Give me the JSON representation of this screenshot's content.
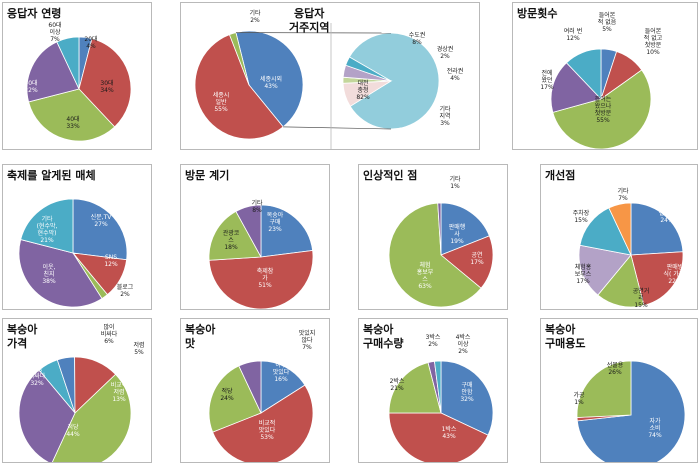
{
  "colors": {
    "blue": "#4f81bd",
    "red": "#c0504d",
    "green": "#9bbb59",
    "purple": "#8064a2",
    "teal": "#4bacc6",
    "orange": "#f79646",
    "lightpurple": "#b3a2c7",
    "pink": "#f2dcdb",
    "lightblue": "#92cddc",
    "olive": "#c3d69b",
    "navy": "#1f497d"
  },
  "chart_data": [
    {
      "id": "c1",
      "type": "pie",
      "title": "응답자 연령",
      "slices": [
        {
          "label": "20대",
          "value": 4,
          "pct": "4%",
          "color": "blue"
        },
        {
          "label": "30대",
          "value": 34,
          "pct": "34%",
          "color": "red"
        },
        {
          "label": "40대",
          "value": 33,
          "pct": "33%",
          "color": "green"
        },
        {
          "label": "50대",
          "value": 22,
          "pct": "22%",
          "color": "purple"
        },
        {
          "label": "60대\n이상",
          "value": 7,
          "pct": "7%",
          "color": "teal"
        }
      ]
    },
    {
      "id": "c2",
      "type": "pie",
      "title": "응답자\n거주지역",
      "slices": [
        {
          "label": "세종시외",
          "value": 43,
          "pct": "43%",
          "color": "blue"
        },
        {
          "label": "세종시\n일반",
          "value": 55,
          "pct": "55%",
          "color": "red"
        },
        {
          "label": "기타",
          "value": 2,
          "pct": "2%",
          "color": "green"
        }
      ],
      "sub_slices": [
        {
          "label": "대전\n충청",
          "value": 82,
          "pct": "82%",
          "color": "lightblue"
        },
        {
          "label": "수도권",
          "value": 8,
          "pct": "8%",
          "color": "pink"
        },
        {
          "label": "경상권",
          "value": 2,
          "pct": "2%",
          "color": "olive"
        },
        {
          "label": "전라권",
          "value": 4,
          "pct": "4%",
          "color": "lightpurple"
        },
        {
          "label": "기타\n지역",
          "value": 3,
          "pct": "3%",
          "color": "teal"
        }
      ]
    },
    {
      "id": "c3",
      "type": "pie",
      "title": "방문횟수",
      "slices": [
        {
          "label": "들어본\n적 없음",
          "value": 5,
          "pct": "5%",
          "color": "blue"
        },
        {
          "label": "들어본\n적 없고\n첫방문",
          "value": 10,
          "pct": "10%",
          "color": "red"
        },
        {
          "label": "들어는\n왔으나\n첫방문",
          "value": 55,
          "pct": "55%",
          "color": "green"
        },
        {
          "label": "전에\n왔던",
          "value": 17,
          "pct": "17%",
          "color": "purple"
        },
        {
          "label": "여러 번",
          "value": 12,
          "pct": "12%",
          "color": "teal"
        }
      ]
    },
    {
      "id": "c4",
      "type": "pie",
      "title": "축제를 알게된 매체",
      "slices": [
        {
          "label": "신문,TV",
          "value": 27,
          "pct": "27%",
          "color": "blue"
        },
        {
          "label": "SNS",
          "value": 12,
          "pct": "12%",
          "color": "red"
        },
        {
          "label": "블로그",
          "value": 2,
          "pct": "2%",
          "color": "green"
        },
        {
          "label": "이웃,\n친지",
          "value": 38,
          "pct": "38%",
          "color": "purple"
        },
        {
          "label": "기타\n(현수막,\n현수막)",
          "value": 21,
          "pct": "21%",
          "color": "teal"
        }
      ]
    },
    {
      "id": "c5",
      "type": "pie",
      "title": "방문 계기",
      "slices": [
        {
          "label": "복숭아\n구매",
          "value": 23,
          "pct": "23%",
          "color": "blue"
        },
        {
          "label": "축제참\n가",
          "value": 51,
          "pct": "51%",
          "color": "red"
        },
        {
          "label": "관광코\n스",
          "value": 18,
          "pct": "18%",
          "color": "green"
        },
        {
          "label": "기타",
          "value": 8,
          "pct": "8%",
          "color": "purple"
        }
      ]
    },
    {
      "id": "c6",
      "type": "pie",
      "title": "인상적인 점",
      "slices": [
        {
          "label": "판매행\n사",
          "value": 19,
          "pct": "19%",
          "color": "blue"
        },
        {
          "label": "공연",
          "value": 17,
          "pct": "17%",
          "color": "red"
        },
        {
          "label": "체험\n홍보부\n스",
          "value": 63,
          "pct": "63%",
          "color": "green"
        },
        {
          "label": "기타",
          "value": 1,
          "pct": "1%",
          "color": "purple"
        }
      ]
    },
    {
      "id": "c7",
      "type": "pie",
      "title": "개선점",
      "slices": [
        {
          "label": "접근성",
          "value": 24,
          "pct": "24%",
          "color": "blue"
        },
        {
          "label": "판매방\n식( 가격)",
          "value": 22,
          "pct": "22%",
          "color": "red"
        },
        {
          "label": "공연거\n리",
          "value": 15,
          "pct": "15%",
          "color": "green"
        },
        {
          "label": "체험홍\n보부스",
          "value": 17,
          "pct": "17%",
          "color": "lightpurple"
        },
        {
          "label": "주차장",
          "value": 15,
          "pct": "15%",
          "color": "teal"
        },
        {
          "label": "기타",
          "value": 7,
          "pct": "7%",
          "color": "orange"
        }
      ]
    },
    {
      "id": "c8",
      "type": "pie",
      "title": "복숭아\n가격",
      "slices": [
        {
          "label": "많이\n비싸다",
          "value": 6,
          "pct": "6%",
          "color": "teal"
        },
        {
          "label": "저렴",
          "value": 5,
          "pct": "5%",
          "color": "blue"
        },
        {
          "label": "비교적\n저렴",
          "value": 13,
          "pct": "13%",
          "color": "red"
        },
        {
          "label": "적당",
          "value": 44,
          "pct": "44%",
          "color": "green"
        },
        {
          "label": "조금\n비싸다",
          "value": 32,
          "pct": "32%",
          "color": "purple"
        }
      ]
    },
    {
      "id": "c9",
      "type": "pie",
      "title": "복숭아\n맛",
      "slices": [
        {
          "label": "아주\n맛있다",
          "value": 16,
          "pct": "16%",
          "color": "blue"
        },
        {
          "label": "비교적\n맛있다",
          "value": 53,
          "pct": "53%",
          "color": "red"
        },
        {
          "label": "적당",
          "value": 24,
          "pct": "24%",
          "color": "green"
        },
        {
          "label": "맛있지\n않다",
          "value": 7,
          "pct": "7%",
          "color": "purple"
        }
      ]
    },
    {
      "id": "c10",
      "type": "pie",
      "title": "복숭아\n구매수량",
      "slices": [
        {
          "label": "구매\n안함",
          "value": 32,
          "pct": "32%",
          "color": "blue"
        },
        {
          "label": "1박스",
          "value": 43,
          "pct": "43%",
          "color": "red"
        },
        {
          "label": "2박스",
          "value": 21,
          "pct": "21%",
          "color": "green"
        },
        {
          "label": "3박스",
          "value": 2,
          "pct": "2%",
          "color": "purple"
        },
        {
          "label": "4박스\n이상",
          "value": 2,
          "pct": "2%",
          "color": "teal"
        }
      ]
    },
    {
      "id": "c11",
      "type": "pie",
      "title": "복숭아\n구매용도",
      "slices": [
        {
          "label": "자가\n소비",
          "value": 74,
          "pct": "74%",
          "color": "blue"
        },
        {
          "label": "가공",
          "value": 1,
          "pct": "1%",
          "color": "red"
        },
        {
          "label": "선물용",
          "value": 26,
          "pct": "26%",
          "color": "green"
        }
      ]
    }
  ]
}
